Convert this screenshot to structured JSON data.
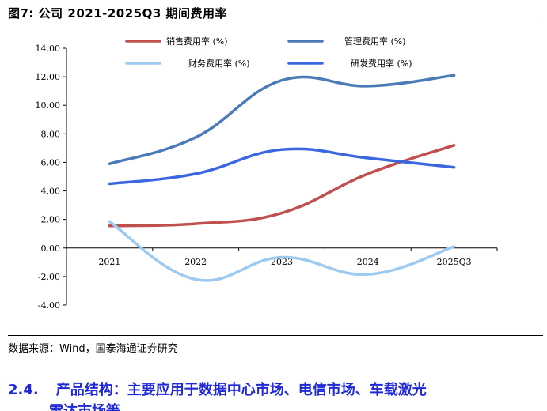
{
  "figure": {
    "title": "图7:  公司  2021-2025Q3  期间费用率",
    "source": "数据来源：Wind，国泰海通证券研究"
  },
  "section": {
    "number": "2.4.",
    "heading": "产品结构：主要应用于数据中心市场、电信市场、车载激光",
    "heading_cont": "雷达市场等"
  },
  "chart_data": {
    "type": "line",
    "categories": [
      "2021",
      "2022",
      "2023",
      "2024",
      "2025Q3"
    ],
    "y_ticks": [
      "14.00",
      "12.00",
      "10.00",
      "8.00",
      "6.00",
      "4.00",
      "2.00",
      "0.00",
      "-2.00",
      "-4.00"
    ],
    "ylim": [
      -4,
      14
    ],
    "grid": false,
    "legend_position": "top",
    "series": [
      {
        "name": "销售费用率 (%)",
        "color": "#c0504d",
        "values": [
          1.55,
          1.7,
          2.45,
          5.2,
          7.2
        ]
      },
      {
        "name": "管理费用率 (%)",
        "color": "#4a7ab8",
        "values": [
          5.9,
          7.75,
          11.75,
          11.35,
          12.1
        ]
      },
      {
        "name": "财务费用率 (%)",
        "color": "#9dcaf0",
        "values": [
          1.85,
          -2.2,
          -0.65,
          -1.85,
          0.1
        ]
      },
      {
        "name": "研发费用率 (%)",
        "color": "#3a66e0",
        "values": [
          4.5,
          5.2,
          6.9,
          6.3,
          5.65
        ]
      }
    ]
  }
}
